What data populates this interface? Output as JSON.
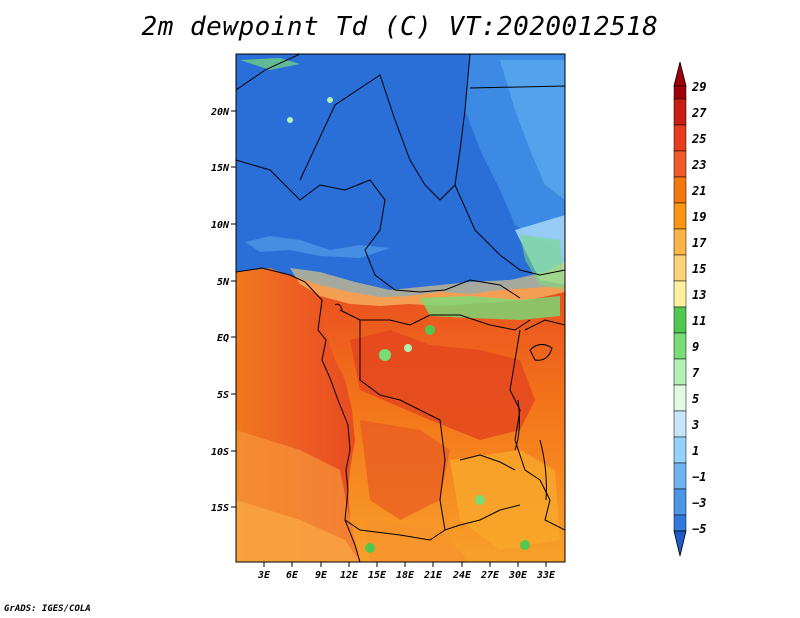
{
  "title": "2m dewpoint Td (C) VT:2020012518",
  "credit": "GrADS: IGES/COLA",
  "map": {
    "lat_labels": [
      "20N",
      "15N",
      "10N",
      "5N",
      "EQ",
      "5S",
      "10S",
      "15S"
    ],
    "lon_labels": [
      "3E",
      "6E",
      "9E",
      "12E",
      "15E",
      "18E",
      "21E",
      "24E",
      "27E",
      "30E",
      "33E"
    ]
  },
  "colorbar": {
    "labels": [
      "29",
      "27",
      "25",
      "23",
      "21",
      "19",
      "17",
      "15",
      "13",
      "11",
      "9",
      "7",
      "5",
      "3",
      "1",
      "−1",
      "−3",
      "−5"
    ],
    "colors": [
      "#a0000a",
      "#c81e14",
      "#e63c1e",
      "#f05a28",
      "#f5780f",
      "#fa9614",
      "#fab446",
      "#fad278",
      "#fff0a0",
      "#fffac8",
      "#50c850",
      "#78dc78",
      "#b4f0b4",
      "#e1fae1",
      "#c8e6fa",
      "#96d2fa",
      "#6eb4f0",
      "#4b96e6",
      "#3278dc",
      "#1e5ac8"
    ]
  }
}
